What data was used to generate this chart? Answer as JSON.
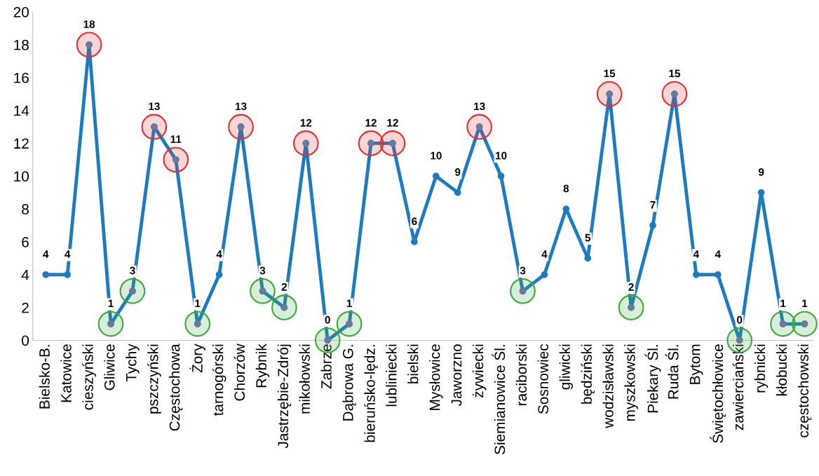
{
  "chart_data": {
    "type": "line",
    "categories": [
      "Bielsko-B.",
      "Katowice",
      "cieszyński",
      "Gliwice",
      "Tychy",
      "pszczyński",
      "Częstochowa",
      "Żory",
      "tarnogórski",
      "Chorzów",
      "Rybnik",
      "Jastrzębie-Zdrój",
      "mikołowski",
      "Zabrze",
      "Dąbrowa G.",
      "bieruńsko-lędz.",
      "lubliniecki",
      "bielski",
      "Mysłowice",
      "Jaworzno",
      "żywiecki",
      "Siemianowice Śl.",
      "raciborski",
      "Sosnowiec",
      "gliwicki",
      "będziński",
      "wodzisławski",
      "myszkowski",
      "Piekary Śl.",
      "Ruda Śl.",
      "Bytom",
      "Świętochłowice",
      "zawierciański",
      "rybnicki",
      "kłobucki",
      "częstochowski"
    ],
    "series": [
      {
        "color": "#1f7bc0",
        "marker": "circle",
        "values": [
          4,
          4,
          18,
          1,
          3,
          13,
          11,
          1,
          4,
          13,
          3,
          2,
          12,
          0,
          1,
          12,
          12,
          6,
          10,
          9,
          13,
          10,
          3,
          4,
          8,
          5,
          15,
          2,
          7,
          15,
          4,
          4,
          0,
          9,
          1,
          1
        ],
        "value_labels": [
          "4",
          "4",
          "18",
          "1",
          "3",
          "13",
          "11",
          "1",
          "4",
          "13",
          "3",
          "2",
          "12",
          "0",
          "1",
          "12",
          "12",
          "6",
          "10",
          "9",
          "13",
          "10",
          "3",
          "4",
          "8",
          "5",
          "15",
          "2",
          "7",
          "15",
          "4",
          "4",
          "0",
          "9",
          "1",
          "1"
        ]
      },
      {
        "type": "scatter",
        "color": "#e03030",
        "marker": "circle",
        "values": [
          null,
          null,
          18,
          null,
          null,
          13,
          11,
          null,
          null,
          13,
          null,
          null,
          12,
          null,
          null,
          12,
          12,
          null,
          null,
          null,
          13,
          null,
          null,
          null,
          null,
          null,
          15,
          null,
          null,
          15,
          null,
          null,
          null,
          null,
          null,
          null
        ]
      },
      {
        "type": "scatter",
        "color": "#3aa83a",
        "marker": "circle",
        "values": [
          null,
          null,
          null,
          1,
          3,
          null,
          null,
          1,
          null,
          null,
          3,
          2,
          null,
          0,
          1,
          null,
          null,
          null,
          null,
          null,
          null,
          null,
          3,
          null,
          null,
          null,
          null,
          2,
          null,
          null,
          null,
          null,
          0,
          null,
          1,
          1
        ]
      }
    ],
    "ylim": [
      0,
      20
    ],
    "yticks": [
      0,
      2,
      4,
      6,
      8,
      10,
      12,
      14,
      16,
      18,
      20
    ],
    "grid": false,
    "legend": false
  }
}
